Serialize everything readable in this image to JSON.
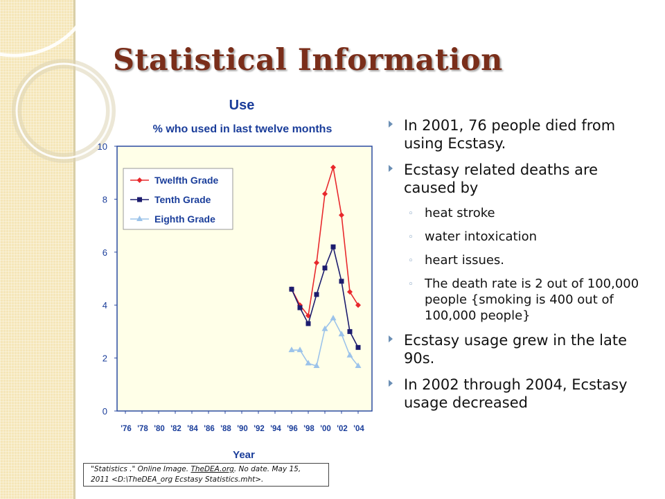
{
  "slide": {
    "title": "Statistical Information"
  },
  "chart_data": {
    "type": "line",
    "title": "Use",
    "subtitle": "% who used in last twelve months",
    "xlabel": "Year",
    "ylabel": "",
    "ylim": [
      0,
      10
    ],
    "yticks": [
      "0",
      "2",
      "4",
      "6",
      "8",
      "10"
    ],
    "x_tick_labels": [
      "'76",
      "'78",
      "'80",
      "'82",
      "'84",
      "'86",
      "'88",
      "'90",
      "'92",
      "'94",
      "'96",
      "'98",
      "'00",
      "'02",
      "'04"
    ],
    "x_range": [
      1975,
      2005
    ],
    "legend_position": "top-left",
    "grid": false,
    "series": [
      {
        "name": "Twelfth Grade",
        "color": "#e8282c",
        "marker": "diamond",
        "x": [
          1996,
          1997,
          1998,
          1999,
          2000,
          2001,
          2002,
          2003,
          2004
        ],
        "values": [
          4.6,
          4.0,
          3.6,
          5.6,
          8.2,
          9.2,
          7.4,
          4.5,
          4.0
        ]
      },
      {
        "name": "Tenth Grade",
        "color": "#1c1c6e",
        "marker": "square",
        "x": [
          1996,
          1997,
          1998,
          1999,
          2000,
          2001,
          2002,
          2003,
          2004
        ],
        "values": [
          4.6,
          3.9,
          3.3,
          4.4,
          5.4,
          6.2,
          4.9,
          3.0,
          2.4
        ]
      },
      {
        "name": "Eighth Grade",
        "color": "#9cc3ea",
        "marker": "triangle",
        "x": [
          1996,
          1997,
          1998,
          1999,
          2000,
          2001,
          2002,
          2003,
          2004
        ],
        "values": [
          2.3,
          2.3,
          1.8,
          1.7,
          3.1,
          3.5,
          2.9,
          2.1,
          1.7
        ]
      }
    ]
  },
  "citation": {
    "part1": "\"Statistics .\" Online Image. ",
    "link": "TheDEA.org",
    "part2": ". No date. May 15,",
    "line2": "2011 <D:\\TheDEA_org Ecstasy Statistics.mht>."
  },
  "bullets": [
    {
      "level": 1,
      "text": "In 2001, 76 people died from using Ecstasy."
    },
    {
      "level": 1,
      "text": "Ecstasy related deaths are caused by"
    },
    {
      "level": 2,
      "text": "heat stroke"
    },
    {
      "level": 2,
      "text": "water intoxication"
    },
    {
      "level": 2,
      "text": "heart issues."
    },
    {
      "level": 2,
      "text": " The death rate is 2 out of 100,000 people {smoking is 400 out of 100,000 people}"
    },
    {
      "level": 1,
      "text": "Ecstasy usage grew in the late 90s."
    },
    {
      "level": 1,
      "text": "In 2002 through 2004, Ecstasy usage decreased"
    }
  ],
  "colors": {
    "title": "#7a2e1a",
    "bullet_accent": "#6b8fb5",
    "side_band": "#f5e6b8"
  }
}
